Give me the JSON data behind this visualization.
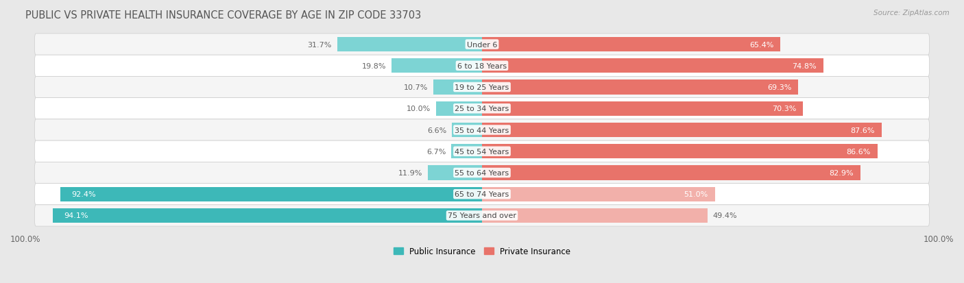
{
  "title": "PUBLIC VS PRIVATE HEALTH INSURANCE COVERAGE BY AGE IN ZIP CODE 33703",
  "source": "Source: ZipAtlas.com",
  "categories": [
    "Under 6",
    "6 to 18 Years",
    "19 to 25 Years",
    "25 to 34 Years",
    "35 to 44 Years",
    "45 to 54 Years",
    "55 to 64 Years",
    "65 to 74 Years",
    "75 Years and over"
  ],
  "public_values": [
    31.7,
    19.8,
    10.7,
    10.0,
    6.6,
    6.7,
    11.9,
    92.4,
    94.1
  ],
  "private_values": [
    65.4,
    74.8,
    69.3,
    70.3,
    87.6,
    86.6,
    82.9,
    51.0,
    49.4
  ],
  "public_color_teal": "#3db8b8",
  "public_color_light": "#7dd4d4",
  "private_color_salmon": "#e8736a",
  "private_color_light": "#f2b0aa",
  "bg_color": "#e8e8e8",
  "row_bg_odd": "#f5f5f5",
  "row_bg_even": "#ffffff",
  "title_color": "#555555",
  "value_label_color": "#666666",
  "max_value": 100.0,
  "bar_height": 0.68,
  "public_label_threshold": 50,
  "private_label_threshold": 50
}
